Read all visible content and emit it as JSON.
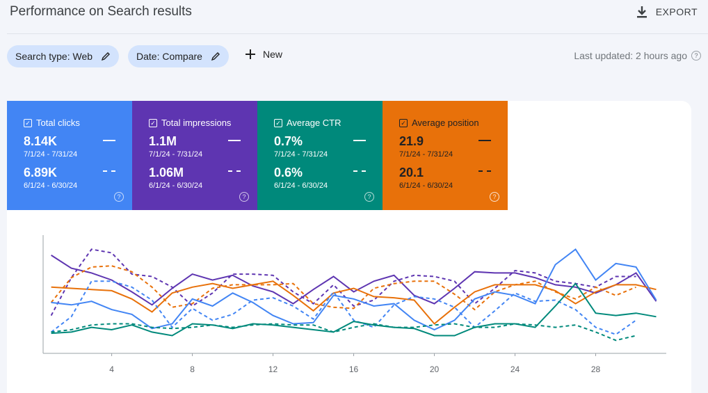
{
  "header": {
    "title": "Performance on Search results",
    "export": "EXPORT"
  },
  "filters": {
    "chips": [
      "Search type: Web",
      "Date: Compare"
    ],
    "new": "New",
    "last_updated": "Last updated: 2 hours ago"
  },
  "cards": [
    {
      "label": "Total clicks",
      "current": "8.14K",
      "current_range": "7/1/24 - 7/31/24",
      "previous": "6.89K",
      "previous_range": "6/1/24 - 6/30/24",
      "color": "#4285f4"
    },
    {
      "label": "Total impressions",
      "current": "1.1M",
      "current_range": "7/1/24 - 7/31/24",
      "previous": "1.06M",
      "previous_range": "6/1/24 - 6/30/24",
      "color": "#5e35b1"
    },
    {
      "label": "Average CTR",
      "current": "0.7%",
      "current_range": "7/1/24 - 7/31/24",
      "previous": "0.6%",
      "previous_range": "6/1/24 - 6/30/24",
      "color": "#00897b"
    },
    {
      "label": "Average position",
      "current": "21.9",
      "current_range": "7/1/24 - 7/31/24",
      "previous": "20.1",
      "previous_range": "6/1/24 - 6/30/24",
      "color": "#e8710a"
    }
  ],
  "chart_data": {
    "type": "line",
    "x": [
      1,
      2,
      3,
      4,
      5,
      6,
      7,
      8,
      9,
      10,
      11,
      12,
      13,
      14,
      15,
      16,
      17,
      18,
      19,
      20,
      21,
      22,
      23,
      24,
      25,
      26,
      27,
      28,
      29,
      30,
      31
    ],
    "xlim": [
      0.6,
      31.5
    ],
    "xticks": [
      4,
      8,
      12,
      16,
      20,
      24,
      28
    ],
    "ylim": [
      0,
      100
    ],
    "series": [
      {
        "color": "#5e35b1",
        "dashed": false,
        "values": [
          83,
          72,
          68,
          62,
          52,
          41,
          55,
          67,
          62,
          66,
          57,
          52,
          42,
          54,
          65,
          52,
          61,
          66,
          49,
          42,
          55,
          69,
          68,
          68,
          64,
          58,
          56,
          51,
          58,
          68,
          44
        ]
      },
      {
        "color": "#5e35b1",
        "dashed": true,
        "values": [
          32,
          64,
          88,
          85,
          67,
          65,
          56,
          40,
          51,
          67,
          67,
          66,
          52,
          42,
          58,
          40,
          45,
          61,
          66,
          65,
          61,
          42,
          55,
          70,
          68,
          61,
          59,
          56,
          65,
          65,
          null
        ]
      },
      {
        "color": "#e8710a",
        "dashed": false,
        "values": [
          56,
          55,
          54,
          53,
          46,
          35,
          51,
          56,
          59,
          55,
          58,
          61,
          49,
          36,
          51,
          55,
          48,
          47,
          45,
          25,
          39,
          52,
          58,
          58,
          58,
          53,
          42,
          52,
          58,
          58,
          54
        ]
      },
      {
        "color": "#e8710a",
        "dashed": true,
        "values": [
          43,
          64,
          73,
          74,
          69,
          56,
          39,
          42,
          55,
          58,
          58,
          58,
          59,
          42,
          39,
          38,
          55,
          59,
          61,
          61,
          50,
          37,
          52,
          58,
          61,
          52,
          46,
          56,
          49,
          56,
          null
        ]
      },
      {
        "color": "#4285f4",
        "dashed": false,
        "values": [
          43,
          41,
          44,
          37,
          33,
          21,
          25,
          46,
          40,
          51,
          43,
          32,
          25,
          26,
          49,
          46,
          40,
          42,
          28,
          20,
          28,
          46,
          52,
          49,
          42,
          75,
          88,
          62,
          76,
          73,
          45
        ]
      },
      {
        "color": "#4285f4",
        "dashed": true,
        "values": [
          18,
          31,
          61,
          61,
          56,
          45,
          22,
          38,
          28,
          33,
          45,
          47,
          40,
          29,
          52,
          28,
          22,
          41,
          48,
          46,
          39,
          22,
          36,
          51,
          44,
          45,
          37,
          22,
          16,
          28,
          null
        ]
      },
      {
        "color": "#00897b",
        "dashed": false,
        "values": [
          17,
          18,
          22,
          20,
          24,
          18,
          15,
          25,
          24,
          21,
          25,
          24,
          22,
          20,
          18,
          27,
          24,
          22,
          21,
          15,
          15,
          22,
          25,
          25,
          22,
          40,
          59,
          34,
          32,
          34,
          31
        ]
      },
      {
        "color": "#00897b",
        "dashed": true,
        "values": [
          18,
          20,
          24,
          25,
          25,
          22,
          21,
          22,
          24,
          22,
          24,
          25,
          24,
          24,
          18,
          22,
          25,
          22,
          22,
          24,
          25,
          22,
          22,
          25,
          24,
          22,
          24,
          18,
          11,
          15,
          null
        ]
      }
    ]
  }
}
